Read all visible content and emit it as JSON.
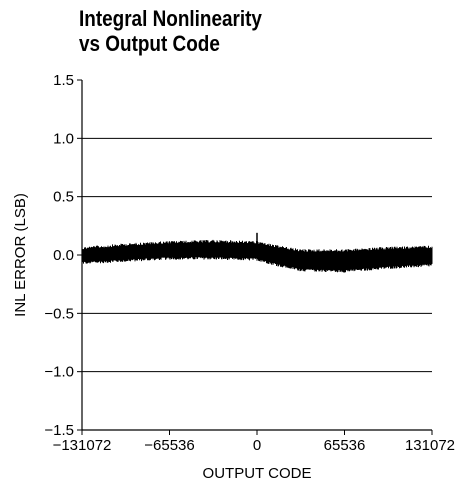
{
  "chart_data": {
    "type": "line",
    "title": "Integral Nonlinearity",
    "subtitle": "vs Output Code",
    "xlabel": "OUTPUT CODE",
    "ylabel": "INL ERROR (LSB)",
    "xlim": [
      -131072,
      131072
    ],
    "ylim": [
      -1.5,
      1.5
    ],
    "x_ticks": [
      -131072,
      -65536,
      0,
      65536,
      131072
    ],
    "x_tick_labels": [
      "−131072",
      "−65536",
      "0",
      "65536",
      "131072"
    ],
    "y_ticks": [
      1.5,
      1.0,
      0.5,
      0.0,
      -0.5,
      -1.0,
      -1.5
    ],
    "y_tick_labels": [
      "1.5",
      "1.0",
      "0.5",
      "0.0",
      "−0.5",
      "−1.0",
      "−1.5"
    ],
    "grid": "horizontal",
    "series": [
      {
        "color": "#000000",
        "band": [
          {
            "x": -131072,
            "min": -0.08,
            "max": 0.07
          },
          {
            "x": -98304,
            "min": -0.06,
            "max": 0.1
          },
          {
            "x": -65536,
            "min": -0.04,
            "max": 0.12
          },
          {
            "x": -32768,
            "min": -0.04,
            "max": 0.13
          },
          {
            "x": 0,
            "min": -0.05,
            "max": 0.12
          },
          {
            "x": 16384,
            "min": -0.1,
            "max": 0.08
          },
          {
            "x": 32768,
            "min": -0.14,
            "max": 0.05
          },
          {
            "x": 65536,
            "min": -0.15,
            "max": 0.05
          },
          {
            "x": 98304,
            "min": -0.12,
            "max": 0.07
          },
          {
            "x": 131072,
            "min": -0.1,
            "max": 0.08
          }
        ],
        "spikes": [
          {
            "x": 0,
            "y": 0.19
          }
        ]
      }
    ]
  }
}
